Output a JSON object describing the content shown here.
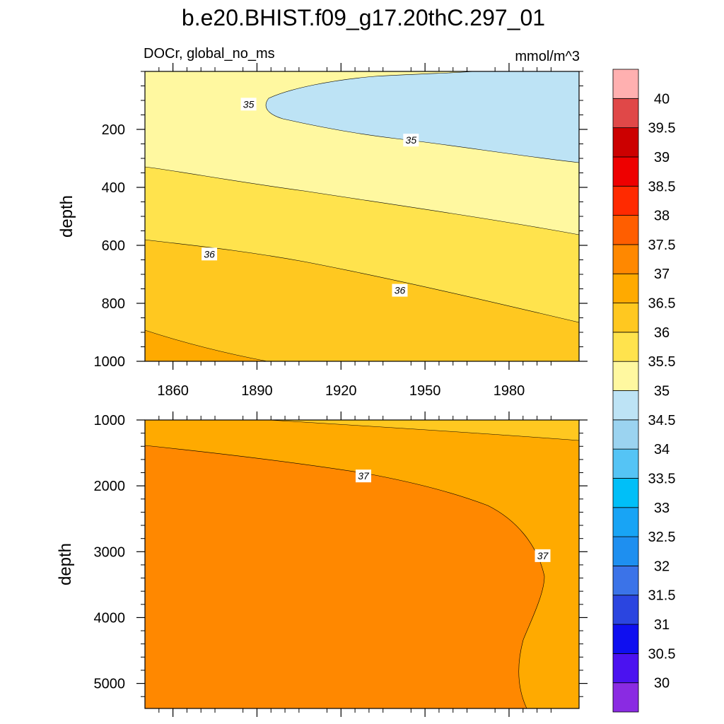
{
  "chart_data": {
    "type": "contour",
    "title": "b.e20.BHIST.f09_g17.20thC.297_01",
    "variable_label": "DOCr, global_no_ms",
    "units_label": "mmol/m^3",
    "colorbar": {
      "levels": [
        "30",
        "30.5",
        "31",
        "31.5",
        "32",
        "32.5",
        "33",
        "33.5",
        "34",
        "34.5",
        "35",
        "35.5",
        "36",
        "36.5",
        "37",
        "37.5",
        "38",
        "38.5",
        "39",
        "39.5",
        "40"
      ],
      "colors": [
        "#8a2be2",
        "#4b12f0",
        "#0f0ff0",
        "#2b45e0",
        "#3b73e8",
        "#1e8ff0",
        "#18a4f5",
        "#00bff8",
        "#55c4f5",
        "#9bd3f0",
        "#bde3f5",
        "#fff8a0",
        "#ffe34d",
        "#ffc820",
        "#ffaa00",
        "#ff8800",
        "#ff5e00",
        "#ff2a00",
        "#ee0000",
        "#cc0000",
        "#e04848",
        "#ffb0b0"
      ]
    },
    "panels": [
      {
        "xlabel": "",
        "ylabel": "depth",
        "xlim": [
          1850,
          2005
        ],
        "ylim": [
          1000,
          0
        ],
        "xticks": [
          "1860",
          "1890",
          "1920",
          "1950",
          "1980"
        ],
        "xtick_values": [
          1860,
          1890,
          1920,
          1950,
          1980
        ],
        "yticks": [
          "200",
          "400",
          "600",
          "800",
          "1000"
        ],
        "ytick_values": [
          200,
          400,
          600,
          800,
          1000
        ],
        "contour_labels": [
          {
            "text": "35",
            "x": 1887,
            "y": 113
          },
          {
            "text": "35",
            "x": 1945,
            "y": 237
          },
          {
            "text": "36",
            "x": 1873,
            "y": 630
          },
          {
            "text": "36",
            "x": 1941,
            "y": 755
          }
        ]
      },
      {
        "xlabel": "",
        "ylabel": "depth",
        "xlim": [
          1850,
          2005
        ],
        "ylim": [
          5380,
          1000
        ],
        "xticks": [],
        "xtick_values": [
          1860,
          1890,
          1920,
          1950,
          1980
        ],
        "yticks": [
          "1000",
          "2000",
          "3000",
          "4000",
          "5000"
        ],
        "ytick_values": [
          1000,
          2000,
          3000,
          4000,
          5000
        ],
        "contour_labels": [
          {
            "text": "37",
            "x": 1928,
            "y": 1850
          },
          {
            "text": "37",
            "x": 1992,
            "y": 3060
          }
        ]
      }
    ]
  }
}
